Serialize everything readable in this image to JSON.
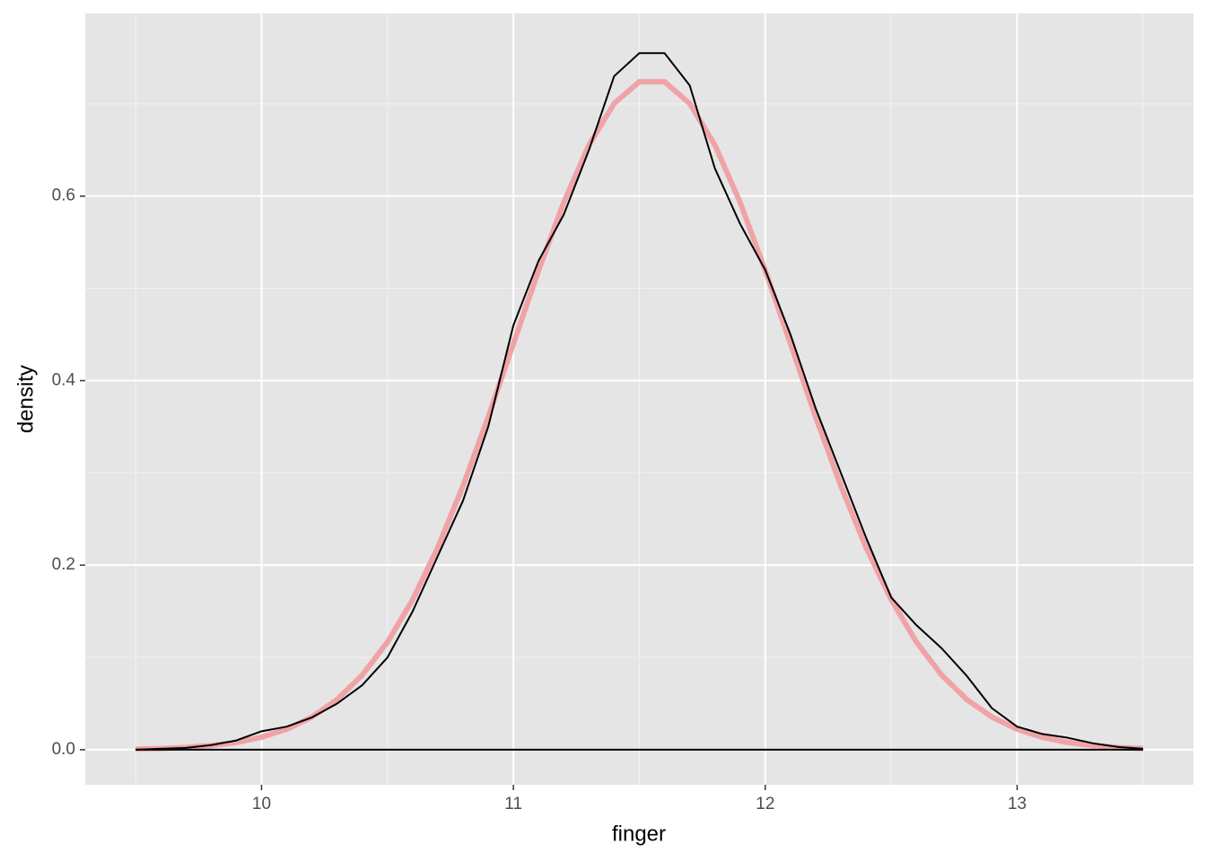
{
  "chart_data": {
    "type": "line",
    "xlabel": "finger",
    "ylabel": "density",
    "x": [
      9.5,
      9.6,
      9.7,
      9.8,
      9.9,
      10.0,
      10.1,
      10.2,
      10.3,
      10.4,
      10.5,
      10.6,
      10.7,
      10.8,
      10.9,
      11.0,
      11.1,
      11.2,
      11.3,
      11.4,
      11.5,
      11.6,
      11.7,
      11.8,
      11.9,
      12.0,
      12.1,
      12.2,
      12.3,
      12.4,
      12.5,
      12.6,
      12.7,
      12.8,
      12.9,
      13.0,
      13.1,
      13.2,
      13.3,
      13.4,
      13.5
    ],
    "series": [
      {
        "color": "#f0a3a6",
        "linewidth": 6,
        "values": [
          0.0007,
          0.0013,
          0.0025,
          0.0045,
          0.0079,
          0.0135,
          0.0222,
          0.0354,
          0.0544,
          0.081,
          0.1167,
          0.1627,
          0.2193,
          0.286,
          0.3607,
          0.4401,
          0.5195,
          0.5933,
          0.6554,
          0.7004,
          0.724,
          0.724,
          0.7004,
          0.6554,
          0.5933,
          0.5195,
          0.4401,
          0.3607,
          0.286,
          0.2193,
          0.1627,
          0.1167,
          0.081,
          0.0544,
          0.0354,
          0.0222,
          0.0135,
          0.0079,
          0.0045,
          0.0025,
          0.0013
        ]
      },
      {
        "color": "#000000",
        "linewidth": 2,
        "values": [
          0.0,
          0.001,
          0.002,
          0.005,
          0.01,
          0.02,
          0.025,
          0.035,
          0.05,
          0.07,
          0.1,
          0.15,
          0.21,
          0.27,
          0.35,
          0.46,
          0.53,
          0.58,
          0.65,
          0.73,
          0.755,
          0.755,
          0.72,
          0.63,
          0.57,
          0.52,
          0.45,
          0.37,
          0.3,
          0.23,
          0.165,
          0.135,
          0.11,
          0.08,
          0.045,
          0.025,
          0.017,
          0.013,
          0.007,
          0.003,
          0.001
        ]
      }
    ],
    "xlim": [
      9.3,
      13.7
    ],
    "xticks": [
      10,
      11,
      12,
      13
    ],
    "x_minor_ticks": [
      9.5,
      10.5,
      11.5,
      12.5,
      13.5
    ],
    "ylim": [
      -0.038,
      0.798
    ],
    "yticks": [
      {
        "value": 0,
        "label": "0.0"
      },
      0.2,
      0.4,
      0.6
    ],
    "y_minor_ticks": [
      0.1,
      0.3,
      0.5,
      0.7
    ],
    "grid": true
  }
}
